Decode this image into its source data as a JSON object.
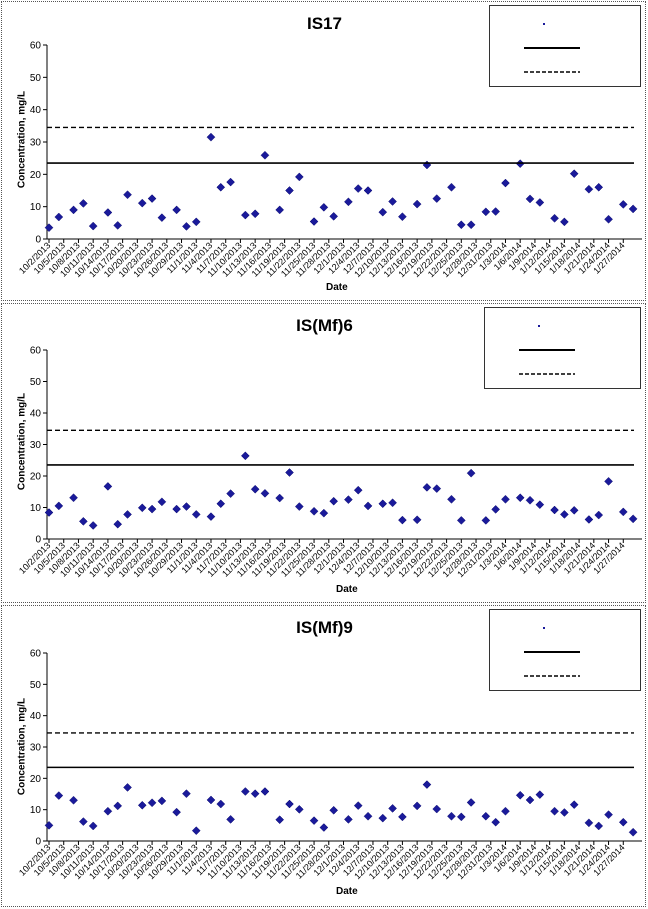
{
  "dates": [
    "10/2/2013",
    "10/5/2013",
    "10/8/2013",
    "10/11/2013",
    "10/14/2013",
    "10/17/2013",
    "10/20/2013",
    "10/23/2013",
    "10/26/2013",
    "10/29/2013",
    "11/1/2013",
    "11/4/2013",
    "11/7/2013",
    "11/10/2013",
    "11/13/2013",
    "11/16/2013",
    "11/19/2013",
    "11/22/2013",
    "11/25/2013",
    "11/28/2013",
    "12/1/2013",
    "12/4/2013",
    "12/7/2013",
    "12/10/2013",
    "12/13/2013",
    "12/16/2013",
    "12/19/2013",
    "12/22/2013",
    "12/25/2013",
    "12/28/2013",
    "12/31/2013",
    "1/3/2014",
    "1/6/2014",
    "1/9/2014",
    "1/12/2014",
    "1/15/2014",
    "1/18/2014",
    "1/21/2014",
    "1/24/2014",
    "1/27/2014"
  ],
  "colors": {
    "marker": "#1a1a9a",
    "line": "#000000"
  },
  "chart_data": [
    {
      "type": "scatter",
      "title": "IS17",
      "xlabel": "Date",
      "ylabel": "Concentration, mg/L",
      "ylim": [
        0,
        60
      ],
      "yticks": [
        0,
        10,
        20,
        30,
        40,
        50,
        60
      ],
      "legend_position": "top-right",
      "series": [
        {
          "name": "",
          "kind": "points",
          "x": [
            "10/2/2013",
            "10/4/2013",
            "10/7/2013",
            "10/9/2013",
            "10/11/2013",
            "10/14/2013",
            "10/16/2013",
            "10/18/2013",
            "10/21/2013",
            "10/23/2013",
            "10/25/2013",
            "10/28/2013",
            "10/30/2013",
            "11/1/2013",
            "11/4/2013",
            "11/6/2013",
            "11/8/2013",
            "11/11/2013",
            "11/13/2013",
            "11/15/2013",
            "11/18/2013",
            "11/20/2013",
            "11/22/2013",
            "11/25/2013",
            "11/27/2013",
            "11/29/2013",
            "12/2/2013",
            "12/4/2013",
            "12/6/2013",
            "12/9/2013",
            "12/11/2013",
            "12/13/2013",
            "12/16/2013",
            "12/18/2013",
            "12/20/2013",
            "12/23/2013",
            "12/25/2013",
            "12/27/2013",
            "12/30/2013",
            "1/1/2014",
            "1/3/2014",
            "1/6/2014",
            "1/8/2014",
            "1/10/2014",
            "1/13/2014",
            "1/15/2014",
            "1/17/2014",
            "1/20/2014",
            "1/22/2014",
            "1/24/2014",
            "1/27/2014",
            "1/29/2014"
          ],
          "values": [
            3.5,
            6.8,
            9,
            11,
            4,
            8.2,
            4.2,
            13.7,
            11.1,
            12.5,
            6.6,
            9,
            3.9,
            5.3,
            31.5,
            16,
            17.6,
            7.4,
            7.8,
            25.9,
            9,
            15,
            19.2,
            5.4,
            9.8,
            7,
            11.5,
            15.6,
            15,
            8.3,
            11.6,
            6.9,
            10.8,
            22.9,
            12.5,
            16,
            4.4,
            4.4,
            8.4,
            8.5,
            17.3,
            23.3,
            12.4,
            11.3,
            6.4,
            5.3,
            20.2,
            15.4,
            16,
            6.1,
            10.7,
            9.3
          ]
        },
        {
          "name": "",
          "kind": "hline",
          "value": 23.5
        },
        {
          "name": "",
          "kind": "hline-dashed",
          "value": 34.5
        }
      ]
    },
    {
      "type": "scatter",
      "title": "IS(Mf)6",
      "xlabel": "Date",
      "ylabel": "Concentration, mg/L",
      "ylim": [
        0,
        60
      ],
      "yticks": [
        0,
        10,
        20,
        30,
        40,
        50,
        60
      ],
      "legend_position": "top-right",
      "series": [
        {
          "name": "",
          "kind": "points",
          "x": [
            "10/2/2013",
            "10/4/2013",
            "10/7/2013",
            "10/9/2013",
            "10/11/2013",
            "10/14/2013",
            "10/16/2013",
            "10/18/2013",
            "10/21/2013",
            "10/23/2013",
            "10/25/2013",
            "10/28/2013",
            "10/30/2013",
            "11/1/2013",
            "11/4/2013",
            "11/6/2013",
            "11/8/2013",
            "11/11/2013",
            "11/13/2013",
            "11/15/2013",
            "11/18/2013",
            "11/20/2013",
            "11/22/2013",
            "11/25/2013",
            "11/27/2013",
            "11/29/2013",
            "12/2/2013",
            "12/4/2013",
            "12/6/2013",
            "12/9/2013",
            "12/11/2013",
            "12/13/2013",
            "12/16/2013",
            "12/18/2013",
            "12/20/2013",
            "12/23/2013",
            "12/25/2013",
            "12/27/2013",
            "12/30/2013",
            "1/1/2014",
            "1/3/2014",
            "1/6/2014",
            "1/8/2014",
            "1/10/2014",
            "1/13/2014",
            "1/15/2014",
            "1/17/2014",
            "1/20/2014",
            "1/22/2014",
            "1/24/2014",
            "1/27/2014",
            "1/29/2014"
          ],
          "values": [
            8.4,
            10.5,
            13.1,
            5.6,
            4.3,
            16.7,
            4.7,
            7.8,
            9.9,
            9.5,
            11.8,
            9.5,
            10.3,
            7.8,
            7.1,
            11.2,
            14.4,
            26.4,
            15.8,
            14.5,
            13,
            21.1,
            10.3,
            8.8,
            8.2,
            12,
            12.5,
            15.5,
            10.5,
            11.2,
            11.5,
            6,
            6.1,
            16.4,
            16,
            12.6,
            5.9,
            20.9,
            5.9,
            9.4,
            12.6,
            13.1,
            12.3,
            10.9,
            9.2,
            7.8,
            9.1,
            6.2,
            7.6,
            18.3,
            8.6,
            6.4
          ]
        },
        {
          "name": "",
          "kind": "hline",
          "value": 23.5
        },
        {
          "name": "",
          "kind": "hline-dashed",
          "value": 34.5
        }
      ]
    },
    {
      "type": "scatter",
      "title": "IS(Mf)9",
      "xlabel": "Date",
      "ylabel": "Concentration, mg/L",
      "ylim": [
        0,
        60
      ],
      "yticks": [
        0,
        10,
        20,
        30,
        40,
        50,
        60
      ],
      "legend_position": "top-right",
      "series": [
        {
          "name": "",
          "kind": "points",
          "x": [
            "10/2/2013",
            "10/4/2013",
            "10/7/2013",
            "10/9/2013",
            "10/11/2013",
            "10/14/2013",
            "10/16/2013",
            "10/18/2013",
            "10/21/2013",
            "10/23/2013",
            "10/25/2013",
            "10/28/2013",
            "10/30/2013",
            "11/1/2013",
            "11/4/2013",
            "11/6/2013",
            "11/8/2013",
            "11/11/2013",
            "11/13/2013",
            "11/15/2013",
            "11/18/2013",
            "11/20/2013",
            "11/22/2013",
            "11/25/2013",
            "11/27/2013",
            "11/29/2013",
            "12/2/2013",
            "12/4/2013",
            "12/6/2013",
            "12/9/2013",
            "12/11/2013",
            "12/13/2013",
            "12/16/2013",
            "12/18/2013",
            "12/20/2013",
            "12/23/2013",
            "12/25/2013",
            "12/27/2013",
            "12/30/2013",
            "1/1/2014",
            "1/3/2014",
            "1/6/2014",
            "1/8/2014",
            "1/10/2014",
            "1/13/2014",
            "1/15/2014",
            "1/17/2014",
            "1/20/2014",
            "1/22/2014",
            "1/24/2014",
            "1/27/2014",
            "1/29/2014"
          ],
          "values": [
            5,
            14.5,
            13,
            6.2,
            4.8,
            9.5,
            11.2,
            17.1,
            11.4,
            12.2,
            12.8,
            9.2,
            15.1,
            3.3,
            13.1,
            11.8,
            6.9,
            15.8,
            15.1,
            15.8,
            6.8,
            11.8,
            10.1,
            6.5,
            4.3,
            9.8,
            6.9,
            11.3,
            7.9,
            7.3,
            10.4,
            7.7,
            11.2,
            18,
            10.2,
            7.9,
            7.7,
            12.3,
            7.9,
            6,
            9.5,
            14.6,
            13.1,
            14.8,
            9.5,
            9.1,
            11.6,
            5.8,
            4.8,
            8.4,
            6,
            2.8
          ]
        },
        {
          "name": "",
          "kind": "hline",
          "value": 23.5
        },
        {
          "name": "",
          "kind": "hline-dashed",
          "value": 34.5
        }
      ]
    }
  ]
}
